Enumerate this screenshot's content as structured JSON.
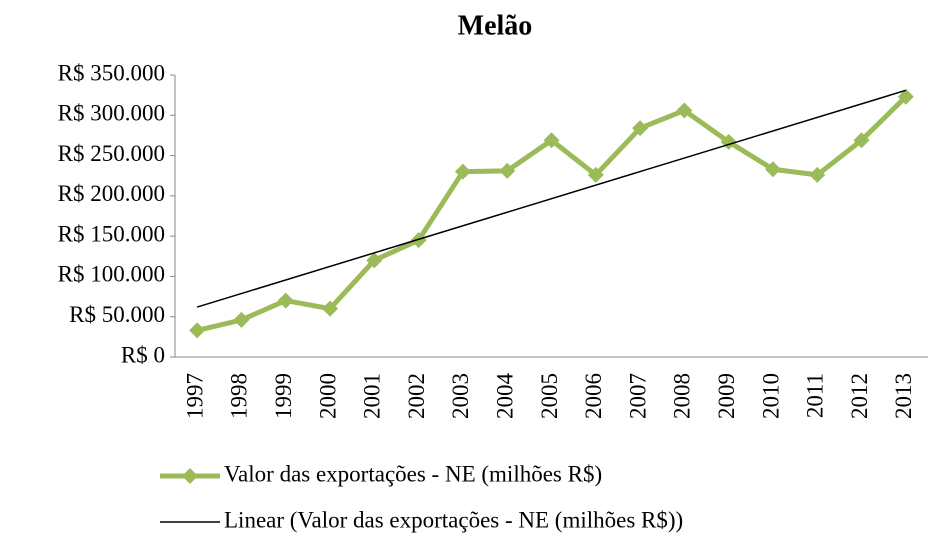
{
  "chart_data": {
    "type": "line",
    "title": "Melão",
    "categories": [
      "1997",
      "1998",
      "1999",
      "2000",
      "2001",
      "2002",
      "2003",
      "2004",
      "2005",
      "2006",
      "2007",
      "2008",
      "2009",
      "2010",
      "2011",
      "2012",
      "2013"
    ],
    "series": [
      {
        "name": "Valor das exportações - NE (milhões R$)",
        "color": "#9bbb59",
        "values": [
          33000,
          46000,
          70000,
          60000,
          120000,
          145000,
          230000,
          231000,
          269000,
          226000,
          284000,
          306000,
          267000,
          233000,
          226000,
          269000,
          323000
        ]
      }
    ],
    "trendline": {
      "name": "Linear (Valor das exportações - NE (milhões R$))",
      "color": "#000000",
      "start": 62000,
      "end": 331000
    },
    "ylim": [
      0,
      350000
    ],
    "yticks": [
      {
        "value": 0,
        "label": "R$ 0"
      },
      {
        "value": 50000,
        "label": "R$ 50.000"
      },
      {
        "value": 100000,
        "label": "R$ 100.000"
      },
      {
        "value": 150000,
        "label": "R$ 150.000"
      },
      {
        "value": 200000,
        "label": "R$ 200.000"
      },
      {
        "value": 250000,
        "label": "R$ 250.000"
      },
      {
        "value": 300000,
        "label": "R$ 300.000"
      },
      {
        "value": 350000,
        "label": "R$ 350.000"
      }
    ],
    "legend": "bottom"
  }
}
